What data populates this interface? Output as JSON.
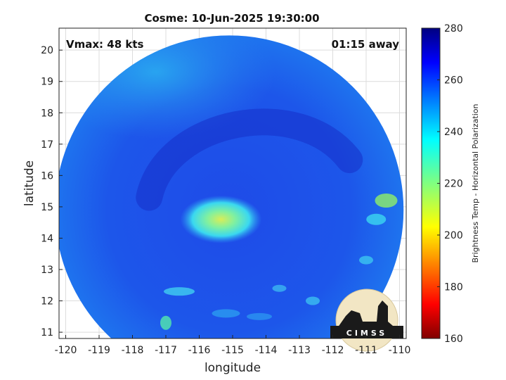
{
  "title": "Cosme: 10-Jun-2025 19:30:00",
  "overlay": {
    "vmax": "Vmax: 48 kts",
    "away": "01:15 away"
  },
  "xaxis": {
    "label": "longitude",
    "range": [
      -120.2,
      -109.8
    ],
    "ticks": [
      -120,
      -119,
      -118,
      -117,
      -116,
      -115,
      -114,
      -113,
      -112,
      -111,
      -110
    ],
    "tick_labels": [
      "-120",
      "-119",
      "-118",
      "-117",
      "-116",
      "-115",
      "-114",
      "-113",
      "-112",
      "-111",
      "-110"
    ]
  },
  "yaxis": {
    "label": "latitude",
    "range": [
      10.8,
      20.7
    ],
    "ticks": [
      11,
      12,
      13,
      14,
      15,
      16,
      17,
      18,
      19,
      20
    ],
    "tick_labels": [
      "11",
      "12",
      "13",
      "14",
      "15",
      "16",
      "17",
      "18",
      "19",
      "20"
    ]
  },
  "colorbar": {
    "label": "Brightness Temp - Horizontal Polarization",
    "range": [
      160,
      280
    ],
    "ticks": [
      160,
      180,
      200,
      220,
      240,
      260,
      280
    ],
    "tick_labels": [
      "160",
      "180",
      "200",
      "220",
      "240",
      "260",
      "280"
    ],
    "colormap": "jet"
  },
  "swath": {
    "center": {
      "lon": -115.1,
      "lat": 14.9
    }
  },
  "storm_center": {
    "lon": -115.35,
    "lat": 14.6,
    "tb": 218
  },
  "logo": {
    "text": "CIMSS"
  },
  "colors": {
    "background_scan": "#1b46e6",
    "cold_core": "#c8e85a",
    "outside": "#ffffff"
  }
}
